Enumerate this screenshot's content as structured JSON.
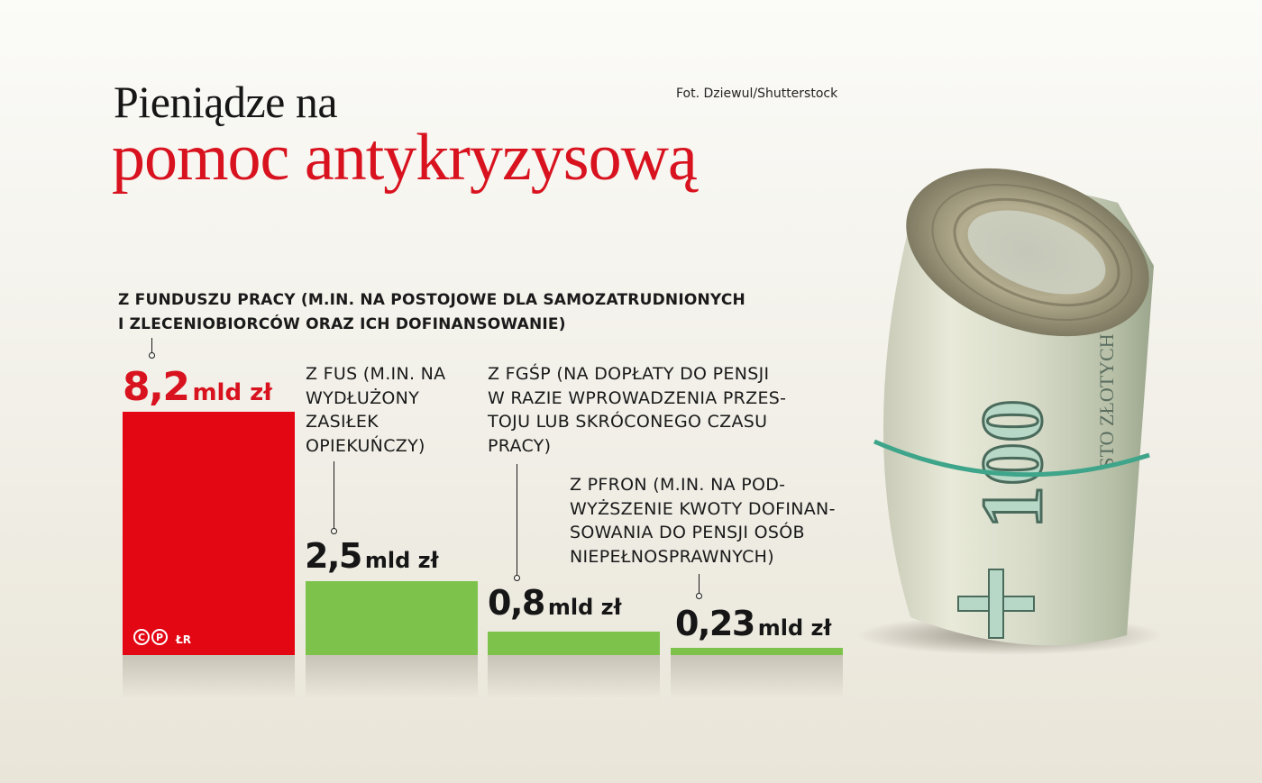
{
  "title": {
    "line1": "Pieniądze na",
    "line2": "pomoc antykryzysową"
  },
  "credit": "Fot. Dziewul/Shutterstock",
  "logo": {
    "c": "C",
    "p": "P",
    "initials": "ŁR"
  },
  "banknote": {
    "denomination": "100",
    "text": "STO ZŁOTYCH"
  },
  "colors": {
    "red": "#e30613",
    "green": "#7dc34b",
    "title_red": "#d8121e"
  },
  "chart_data": {
    "type": "bar",
    "unit": "mld zł",
    "ylim": [
      0,
      8.2
    ],
    "categories": [
      "Z FUNDUSZU PRACY (M.IN. NA POSTOJOWE DLA SAMOZATRUDNIONYCH I ZLECENIOBIORCÓW ORAZ ICH DOFINANSOWANIE)",
      "Z FUS (M.IN. NA WYDŁUŻONY ZASIŁEK OPIEKUŃCZY)",
      "Z FGŚP (NA DOPŁATY DO PENSJI W RAZIE WPROWADZENIA PRZESTOJU LUB SKRÓCONEGO CZASU PRACY)",
      "Z PFRON (M.IN. NA PODWYŻSZENIE KWOTY DOFINANSOWANIA DO PENSJI OSÓB NIEPEŁNOSPRAWNYCH)"
    ],
    "values": [
      8.2,
      2.5,
      0.8,
      0.23
    ],
    "value_labels": [
      "8,2",
      "2,5",
      "0,8",
      "0,23"
    ],
    "bar_colors": [
      "#e30613",
      "#7dc34b",
      "#7dc34b",
      "#7dc34b"
    ],
    "notes": [
      "Z FUNDUSZU PRACY (M.IN. NA POSTOJOWE DLA SAMOZATRUDNIONYCH\nI ZLECENIOBIORCÓW ORAZ ICH DOFINANSOWANIE)",
      "Z FUS (M.IN. NA\nWYDŁUŻONY\nZASIŁEK\nOPIEKUŃCZY)",
      "Z FGŚP (NA DOPŁATY DO PENSJI\nW RAZIE WPROWADZENIA PRZES-\nTOJU LUB SKRÓCONEGO CZASU\nPRACY)",
      "Z PFRON (M.IN. NA POD-\nWYŻSZENIE KWOTY DOFINAN-\nSOWANIA DO PENSJI OSÓB\nNIEPEŁNOSPRAWNYCH)"
    ]
  }
}
